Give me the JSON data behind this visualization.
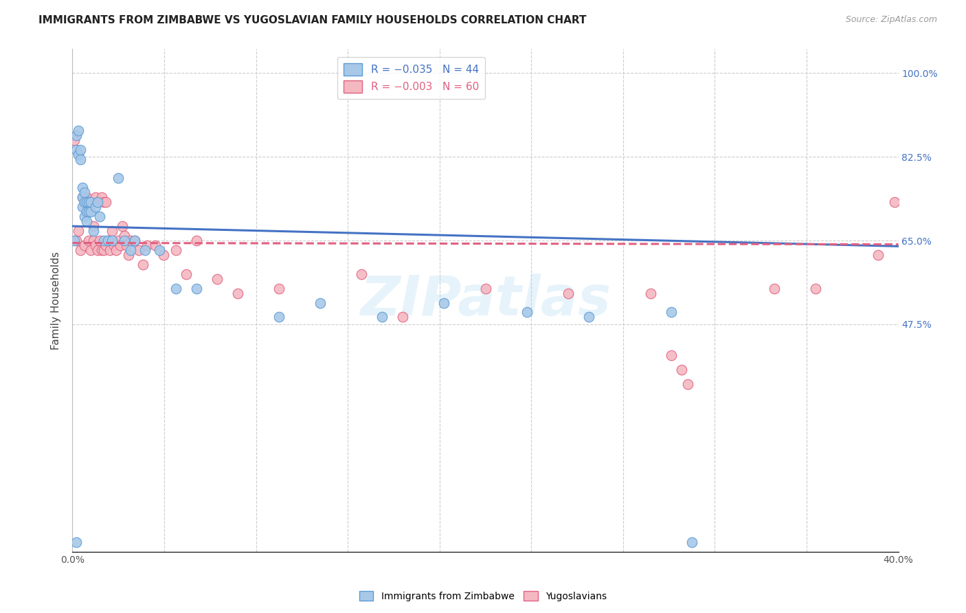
{
  "title": "IMMIGRANTS FROM ZIMBABWE VS YUGOSLAVIAN FAMILY HOUSEHOLDS CORRELATION CHART",
  "source": "Source: ZipAtlas.com",
  "ylabel": "Family Households",
  "xlim": [
    0.0,
    0.4
  ],
  "ylim": [
    0.0,
    1.05
  ],
  "right_ytick_values": [
    1.0,
    0.825,
    0.65,
    0.475
  ],
  "right_ytick_labels": [
    "100.0%",
    "82.5%",
    "65.0%",
    "47.5%"
  ],
  "scatter_blue_color": "#a8c8e8",
  "scatter_blue_edge": "#5b9bd5",
  "scatter_pink_color": "#f4b8c1",
  "scatter_pink_edge": "#e06080",
  "trend_blue_color": "#4472c4",
  "trend_pink_color": "#e06080",
  "watermark": "ZIPatlas",
  "background_color": "#ffffff",
  "grid_color": "#cccccc",
  "blue_x": [
    0.001,
    0.002,
    0.002,
    0.003,
    0.003,
    0.004,
    0.004,
    0.005,
    0.005,
    0.005,
    0.006,
    0.006,
    0.006,
    0.007,
    0.007,
    0.007,
    0.008,
    0.008,
    0.009,
    0.009,
    0.01,
    0.011,
    0.012,
    0.013,
    0.015,
    0.017,
    0.019,
    0.022,
    0.025,
    0.028,
    0.03,
    0.035,
    0.042,
    0.05,
    0.06,
    0.1,
    0.12,
    0.15,
    0.18,
    0.22,
    0.25,
    0.29,
    0.3,
    0.002
  ],
  "blue_y": [
    0.65,
    0.87,
    0.84,
    0.88,
    0.83,
    0.84,
    0.82,
    0.76,
    0.74,
    0.72,
    0.75,
    0.73,
    0.7,
    0.73,
    0.71,
    0.69,
    0.73,
    0.71,
    0.73,
    0.71,
    0.67,
    0.72,
    0.73,
    0.7,
    0.65,
    0.65,
    0.65,
    0.78,
    0.65,
    0.63,
    0.65,
    0.63,
    0.63,
    0.55,
    0.55,
    0.49,
    0.52,
    0.49,
    0.52,
    0.5,
    0.49,
    0.5,
    0.02,
    0.02
  ],
  "pink_x": [
    0.001,
    0.002,
    0.003,
    0.004,
    0.005,
    0.006,
    0.006,
    0.007,
    0.008,
    0.009,
    0.009,
    0.01,
    0.01,
    0.011,
    0.011,
    0.012,
    0.012,
    0.013,
    0.014,
    0.014,
    0.015,
    0.015,
    0.016,
    0.016,
    0.017,
    0.018,
    0.019,
    0.02,
    0.021,
    0.022,
    0.023,
    0.024,
    0.025,
    0.026,
    0.027,
    0.028,
    0.03,
    0.032,
    0.034,
    0.036,
    0.04,
    0.044,
    0.05,
    0.055,
    0.06,
    0.07,
    0.08,
    0.1,
    0.14,
    0.16,
    0.2,
    0.24,
    0.28,
    0.29,
    0.295,
    0.298,
    0.34,
    0.36,
    0.39,
    0.398
  ],
  "pink_y": [
    0.86,
    0.65,
    0.67,
    0.63,
    0.74,
    0.64,
    0.73,
    0.74,
    0.65,
    0.63,
    0.73,
    0.68,
    0.65,
    0.64,
    0.74,
    0.63,
    0.73,
    0.65,
    0.63,
    0.74,
    0.63,
    0.73,
    0.64,
    0.73,
    0.65,
    0.63,
    0.67,
    0.64,
    0.63,
    0.65,
    0.64,
    0.68,
    0.66,
    0.64,
    0.62,
    0.65,
    0.65,
    0.63,
    0.6,
    0.64,
    0.64,
    0.62,
    0.63,
    0.58,
    0.65,
    0.57,
    0.54,
    0.55,
    0.58,
    0.49,
    0.55,
    0.54,
    0.54,
    0.41,
    0.38,
    0.35,
    0.55,
    0.55,
    0.62,
    0.73
  ],
  "trend_blue_x0": 0.0,
  "trend_blue_x1": 0.4,
  "trend_blue_y0": 0.68,
  "trend_blue_y1": 0.638,
  "trend_pink_x0": 0.0,
  "trend_pink_x1": 0.4,
  "trend_pink_y0": 0.645,
  "trend_pink_y1": 0.642
}
